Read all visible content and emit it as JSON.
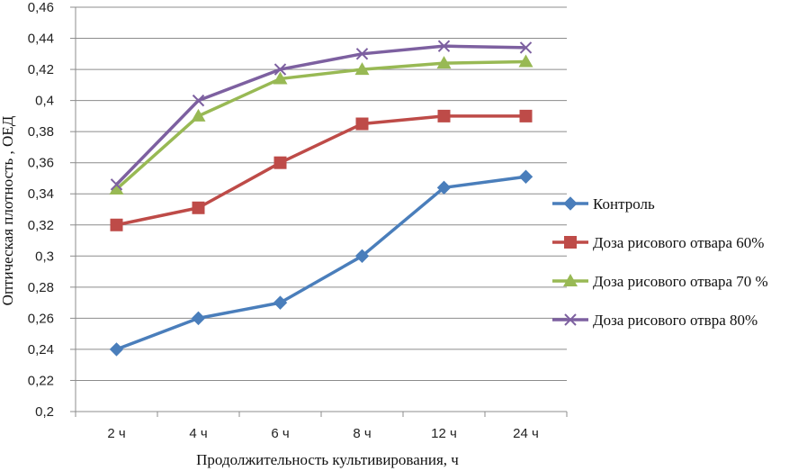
{
  "chart_data": {
    "type": "line",
    "title": "",
    "xlabel": "Продолжительность культивирования, ч",
    "ylabel": "Оптическая плотность , ОЕД",
    "ylim": [
      0.2,
      0.46
    ],
    "ytick_step": 0.02,
    "ytick_labels": [
      "0,2",
      "0,22",
      "0,24",
      "0,26",
      "0,28",
      "0,3",
      "0,32",
      "0,34",
      "0,36",
      "0,38",
      "0,4",
      "0,42",
      "0,44",
      "0,46"
    ],
    "categories": [
      "2 ч",
      "4 ч",
      "6 ч",
      "8 ч",
      "12 ч",
      "24 ч"
    ],
    "grid": "horizontal",
    "legend_position": "right",
    "series": [
      {
        "name": "Контроль",
        "marker": "diamond",
        "color": "#4A7EBB",
        "values": [
          0.24,
          0.26,
          0.27,
          0.3,
          0.344,
          0.351
        ]
      },
      {
        "name": "Доза рисового отвара 60%",
        "marker": "square",
        "color": "#BE4B48",
        "values": [
          0.32,
          0.331,
          0.36,
          0.385,
          0.39,
          0.39
        ]
      },
      {
        "name": "Доза рисового отвара 70 %",
        "marker": "triangle",
        "color": "#98B954",
        "values": [
          0.343,
          0.39,
          0.414,
          0.42,
          0.424,
          0.425
        ]
      },
      {
        "name": "Доза рисового отвра 80%",
        "marker": "x",
        "color": "#7D60A0",
        "values": [
          0.346,
          0.4,
          0.42,
          0.43,
          0.435,
          0.434
        ]
      }
    ]
  }
}
